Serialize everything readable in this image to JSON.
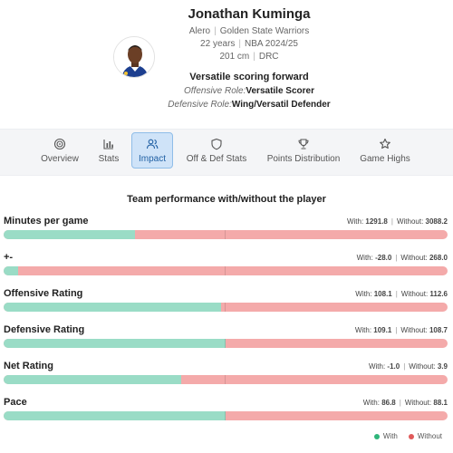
{
  "player": {
    "name": "Jonathan Kuminga",
    "position": "Alero",
    "team": "Golden State Warriors",
    "age": "22 years",
    "season": "NBA 2024/25",
    "height": "201 cm",
    "country": "DRC",
    "role_title": "Versatile scoring forward",
    "offensive_label": "Offensive Role:",
    "offensive_value": "Versatile Scorer",
    "defensive_label": "Defensive Role:",
    "defensive_value": "Wing/Versatil Defender"
  },
  "tabs": [
    {
      "label": "Overview",
      "icon": "target-icon"
    },
    {
      "label": "Stats",
      "icon": "bar-chart-icon"
    },
    {
      "label": "Impact",
      "icon": "users-icon",
      "active": true
    },
    {
      "label": "Off & Def Stats",
      "icon": "shield-icon"
    },
    {
      "label": "Points Distribution",
      "icon": "trophy-icon"
    },
    {
      "label": "Game Highs",
      "icon": "star-icon"
    }
  ],
  "section_title": "Team performance with/without the player",
  "chart_data": {
    "type": "bar",
    "title": "Team performance with/without the player",
    "with_label": "With:",
    "without_label": "Without:",
    "categories": [
      "Minutes per game",
      "+-",
      "Offensive Rating",
      "Defensive Rating",
      "Net Rating",
      "Pace"
    ],
    "series": [
      {
        "name": "With",
        "values": [
          "1291.8",
          "-28.0",
          "108.1",
          "109.1",
          "-1.0",
          "86.8"
        ]
      },
      {
        "name": "Without",
        "values": [
          "3088.2",
          "268.0",
          "112.6",
          "108.7",
          "3.9",
          "88.1"
        ]
      }
    ],
    "with_share": [
      0.295,
      0.032,
      0.49,
      0.5,
      0.4,
      0.5
    ],
    "legend_position": "bottom-right"
  },
  "legend": {
    "with": "With",
    "without": "Without"
  },
  "colors": {
    "with": "#9adcc6",
    "without": "#f4aaaa",
    "legend_with": "#2fb57a",
    "legend_without": "#e05a5a",
    "active_tab": "#cfe3f8"
  }
}
